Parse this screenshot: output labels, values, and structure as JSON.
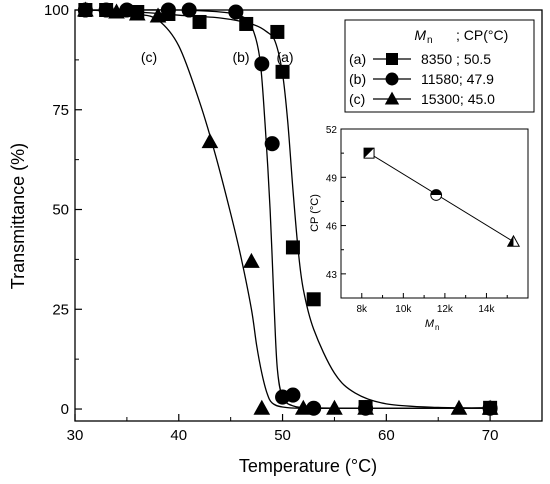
{
  "chart_data": [
    {
      "type": "scatter",
      "xlabel": "Temperature (°C)",
      "ylabel": "Transmittance (%)",
      "xlim": [
        30,
        75
      ],
      "ylim": [
        -3,
        100
      ],
      "x_ticks": [
        "30",
        "40",
        "50",
        "60",
        "70"
      ],
      "y_ticks": [
        "0",
        "25",
        "50",
        "75",
        "100"
      ],
      "grid": false,
      "legend_position": "top-right",
      "legend_header": {
        "mn": "M",
        "mn_sub": "n",
        "cp": "; CP(°C)"
      },
      "series": [
        {
          "name": "8350 ; 50.5",
          "tag": "(a)",
          "legend_tag": "(a)",
          "marker": "square",
          "x": [
            31,
            33,
            36,
            39,
            42,
            46.5,
            49.5,
            50,
            51,
            53,
            58,
            70
          ],
          "y": [
            100,
            100,
            99.5,
            99,
            97,
            96.5,
            94.5,
            84.5,
            40.5,
            27.5,
            0.5,
            0.3
          ],
          "fit_x": [
            31,
            36,
            40,
            44,
            47,
            48.5,
            49.3,
            50,
            50.5,
            51,
            51.5,
            52,
            53,
            55,
            57,
            60,
            65,
            70
          ],
          "fit_y": [
            100,
            99.5,
            98.7,
            98,
            96.5,
            94.5,
            92,
            84,
            72,
            55,
            40,
            30,
            20,
            9,
            4,
            1.3,
            0.4,
            0.3
          ]
        },
        {
          "name": "11580; 47.9",
          "tag": "(b)",
          "legend_tag": "(b)",
          "marker": "circle",
          "x": [
            31,
            33,
            35,
            39,
            41,
            45.5,
            48,
            49,
            50,
            51,
            53,
            58,
            70
          ],
          "y": [
            100,
            100,
            100,
            100,
            100,
            99.5,
            86.5,
            66.5,
            3,
            3.5,
            0.2,
            0.2,
            0.2
          ],
          "fit_x": [
            31,
            36,
            40,
            44,
            46,
            47,
            47.8,
            48.3,
            48.8,
            49.2,
            49.5,
            50,
            51,
            53,
            58,
            70
          ],
          "fit_y": [
            100,
            100,
            100,
            99.5,
            98.5,
            96,
            88,
            72,
            50,
            25,
            10,
            3,
            0.8,
            0.3,
            0.2,
            0.2
          ]
        },
        {
          "name": "15300; 45.0",
          "tag": "(c)",
          "legend_tag": "(c)",
          "marker": "triangle",
          "x": [
            31,
            34,
            36,
            38,
            43,
            47,
            48,
            52,
            55,
            58,
            67,
            70
          ],
          "y": [
            100,
            99.5,
            99,
            98.5,
            67,
            37,
            0.2,
            0.2,
            0.2,
            0.2,
            0.2,
            0.2
          ],
          "fit_x": [
            31,
            34,
            36,
            38,
            40,
            42,
            43.5,
            45,
            46,
            47,
            47.5,
            48,
            48.5,
            49,
            50,
            52,
            58,
            70
          ],
          "fit_y": [
            100,
            99.7,
            99,
            97.5,
            91,
            77,
            64,
            49,
            38,
            25,
            16,
            9,
            4,
            1.5,
            0.5,
            0.2,
            0.2,
            0.2
          ]
        }
      ]
    },
    {
      "type": "scatter",
      "xlabel": "M",
      "xlabel_sub": "n",
      "ylabel": "CP (°C)",
      "xlim": [
        7000,
        16000
      ],
      "ylim": [
        41.5,
        52
      ],
      "x_ticks": [
        {
          "value": 8000,
          "label": "8k"
        },
        {
          "value": 10000,
          "label": "10k"
        },
        {
          "value": 12000,
          "label": "12k"
        },
        {
          "value": 14000,
          "label": "14k"
        }
      ],
      "y_ticks": [
        {
          "value": 43,
          "label": "43"
        },
        {
          "value": 46,
          "label": "46"
        },
        {
          "value": 49,
          "label": "49"
        },
        {
          "value": 52,
          "label": "52"
        }
      ],
      "points": [
        {
          "x": 8350,
          "y": 50.5,
          "marker": "square"
        },
        {
          "x": 11580,
          "y": 47.9,
          "marker": "circle"
        },
        {
          "x": 15300,
          "y": 45.0,
          "marker": "triangle"
        }
      ],
      "fit_line": {
        "x": [
          8350,
          15300
        ],
        "y": [
          50.5,
          45.0
        ]
      }
    }
  ]
}
